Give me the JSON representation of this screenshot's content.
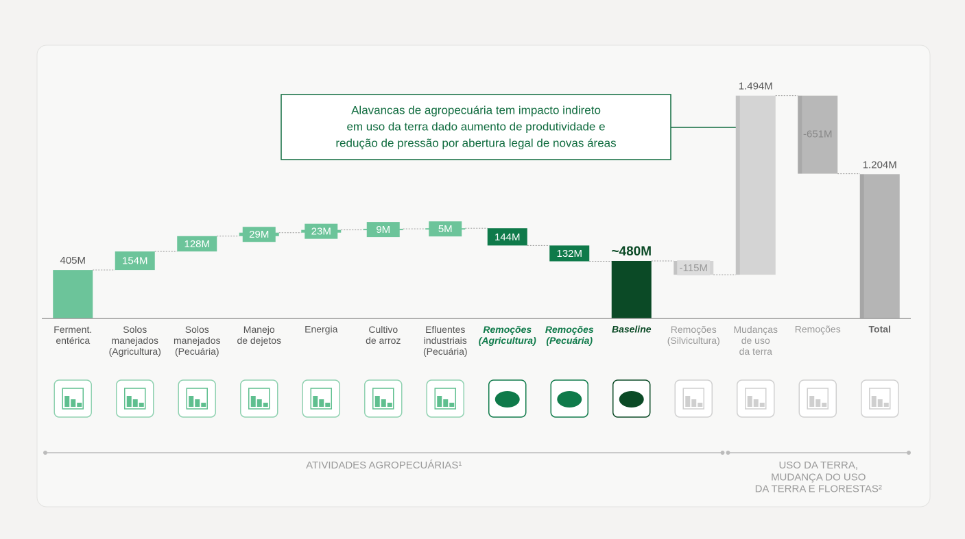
{
  "chart_data": {
    "type": "waterfall",
    "annotation": [
      "Alavancas de agropecuária tem impacto indireto",
      "em uso da terra dado aumento de produtividade e",
      "redução de pressão por abertura legal de novas áreas"
    ],
    "categories": [
      "Ferment.\nentérica",
      "Solos\nmanejados\n(Agricultura)",
      "Solos\nmanejados\n(Pecuária)",
      "Manejo\nde dejetos",
      "Energia",
      "Cultivo\nde arroz",
      "Efluentes\nindustriais\n(Pecuária)",
      "Remoções\n(Agricultura)",
      "Remoções\n(Pecuária)",
      "Baseline",
      "Remoções\n(Silvicultura)",
      "Mudanças\nde uso\nda terra",
      "Remoções",
      "Total"
    ],
    "values": [
      405,
      154,
      128,
      29,
      23,
      9,
      5,
      -144,
      -132,
      480,
      -115,
      1494,
      -651,
      1204
    ],
    "value_labels": [
      "405M",
      "154M",
      "128M",
      "29M",
      "23M",
      "9M",
      "5M",
      "144M",
      "132M",
      "~480M",
      "-115M",
      "1.494M",
      "-651M",
      "1.204M"
    ],
    "measure": [
      "relative",
      "relative",
      "relative",
      "relative",
      "relative",
      "relative",
      "relative",
      "relative",
      "relative",
      "total",
      "relative",
      "relative",
      "relative",
      "total"
    ],
    "colors": [
      "#6cc49a",
      "#6cc49a",
      "#6cc49a",
      "#6cc49a",
      "#6cc49a",
      "#6cc49a",
      "#6cc49a",
      "#0f7a4a",
      "#0f7a4a",
      "#0b4a26",
      "#d4d4d4",
      "#d4d4d4",
      "#b8b8b8",
      "#b5b5b5"
    ],
    "ylim": [
      0,
      2000
    ],
    "groups": [
      {
        "label": "ATIVIDADES AGROPECUÁRIAS¹",
        "first": 0,
        "last": 10
      },
      {
        "label": "USO DA TERRA,\nMUDANÇA DO USO\nDA TERRA E FLORESTAS²",
        "first": 11,
        "last": 13
      }
    ]
  }
}
